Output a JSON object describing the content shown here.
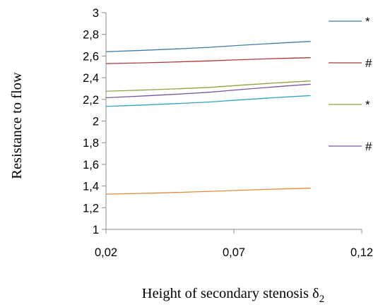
{
  "chart_data": {
    "type": "line",
    "title": "",
    "xlabel": "Height of secondary stenosis",
    "xlabel_symbol": "δ",
    "xlabel_subscript": "2",
    "ylabel": "Resistance to flow",
    "xlim": [
      0.02,
      0.12
    ],
    "ylim": [
      1,
      3
    ],
    "x_ticks": [
      "0,02",
      "0,07",
      "0,12"
    ],
    "y_ticks": [
      "1",
      "1,2",
      "1,4",
      "1,6",
      "1,8",
      "2",
      "2,2",
      "2,4",
      "2,6",
      "2,8",
      "3"
    ],
    "grid": false,
    "legend_position": "right",
    "series": [
      {
        "name": "*",
        "color": "#3f7ca6",
        "x": [
          0.02,
          0.06,
          0.1
        ],
        "y": [
          2.64,
          2.68,
          2.735
        ],
        "legend": true
      },
      {
        "name": "#",
        "color": "#b03838",
        "x": [
          0.02,
          0.06,
          0.1
        ],
        "y": [
          2.53,
          2.555,
          2.585
        ],
        "legend": true
      },
      {
        "name": "*",
        "color": "#8aa53e",
        "x": [
          0.02,
          0.06,
          0.1
        ],
        "y": [
          2.275,
          2.31,
          2.37
        ],
        "legend": true
      },
      {
        "name": "#",
        "color": "#7a56a0",
        "x": [
          0.02,
          0.06,
          0.1
        ],
        "y": [
          2.215,
          2.265,
          2.34
        ],
        "legend": true
      },
      {
        "name": "",
        "color": "#33a3c0",
        "x": [
          0.02,
          0.06,
          0.1
        ],
        "y": [
          2.135,
          2.175,
          2.235
        ],
        "legend": false
      },
      {
        "name": "",
        "color": "#e68a3e",
        "x": [
          0.02,
          0.06,
          0.1
        ],
        "y": [
          1.325,
          1.35,
          1.38
        ],
        "legend": false
      }
    ]
  }
}
